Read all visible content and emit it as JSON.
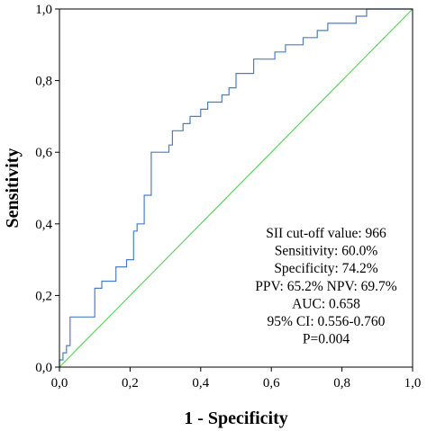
{
  "chart_data": {
    "type": "line",
    "title": "",
    "xlabel": "1 - Specificity",
    "ylabel": "Sensitivity",
    "xlim": [
      0,
      1
    ],
    "ylim": [
      0,
      1
    ],
    "xticks": [
      "0,0",
      "0,2",
      "0,4",
      "0,6",
      "0,8",
      "1,0"
    ],
    "yticks": [
      "0,0",
      "0,2",
      "0,4",
      "0,6",
      "0,8",
      "1,0"
    ],
    "grid": false,
    "legend": "none",
    "series": [
      {
        "kind": "step",
        "x": [
          0.0,
          0.0,
          0.01,
          0.01,
          0.02,
          0.02,
          0.03,
          0.03,
          0.1,
          0.1,
          0.12,
          0.12,
          0.16,
          0.16,
          0.19,
          0.19,
          0.21,
          0.21,
          0.22,
          0.22,
          0.24,
          0.24,
          0.24,
          0.24,
          0.26,
          0.26,
          0.31,
          0.31,
          0.32,
          0.32,
          0.35,
          0.35,
          0.37,
          0.37,
          0.4,
          0.4,
          0.42,
          0.42,
          0.46,
          0.46,
          0.48,
          0.48,
          0.5,
          0.5,
          0.55,
          0.55,
          0.61,
          0.61,
          0.64,
          0.64,
          0.69,
          0.69,
          0.73,
          0.73,
          0.76,
          0.76,
          0.84,
          0.84,
          0.87,
          0.87,
          0.98,
          0.98,
          1.0
        ],
        "y": [
          0.0,
          0.02,
          0.02,
          0.04,
          0.04,
          0.06,
          0.06,
          0.14,
          0.14,
          0.22,
          0.22,
          0.24,
          0.24,
          0.28,
          0.28,
          0.3,
          0.3,
          0.38,
          0.38,
          0.4,
          0.4,
          0.44,
          0.44,
          0.48,
          0.48,
          0.6,
          0.6,
          0.62,
          0.62,
          0.66,
          0.66,
          0.68,
          0.68,
          0.7,
          0.7,
          0.72,
          0.72,
          0.74,
          0.74,
          0.76,
          0.76,
          0.78,
          0.78,
          0.82,
          0.82,
          0.86,
          0.86,
          0.88,
          0.88,
          0.9,
          0.9,
          0.92,
          0.92,
          0.94,
          0.94,
          0.96,
          0.96,
          0.98,
          0.98,
          1.0,
          1.0,
          1.0,
          1.0
        ],
        "color": "#4a7ec8"
      },
      {
        "kind": "reference",
        "x": [
          0,
          1
        ],
        "y": [
          0,
          1
        ],
        "color": "#5ed35e"
      }
    ],
    "annotations": [
      "SII cut-off value: 966",
      "Sensitivity: 60.0%",
      "Specificity: 74.2%",
      "PPV: 65.2% NPV: 69.7%",
      "AUC: 0.658",
      "95% CI: 0.556-0.760",
      "P=0.004"
    ]
  }
}
